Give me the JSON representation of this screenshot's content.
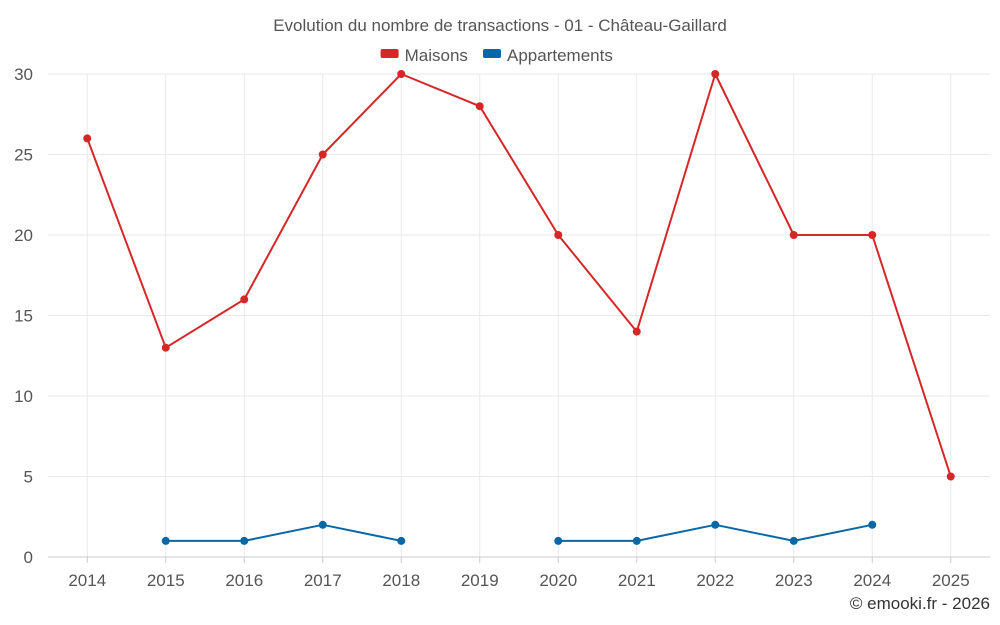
{
  "chart_data": {
    "type": "line",
    "title": "Evolution du nombre de transactions - 01 - Château-Gaillard",
    "xlabel": "",
    "ylabel": "",
    "categories": [
      "2014",
      "2015",
      "2016",
      "2017",
      "2018",
      "2019",
      "2020",
      "2021",
      "2022",
      "2023",
      "2024",
      "2025"
    ],
    "ylim": [
      0,
      30
    ],
    "yticks": [
      "0",
      "5",
      "10",
      "15",
      "20",
      "25",
      "30"
    ],
    "grid": true,
    "legend_position": "top-center",
    "series": [
      {
        "name": "Maisons",
        "color": "#d62728",
        "values": [
          26,
          13,
          16,
          25,
          30,
          28,
          20,
          14,
          30,
          20,
          20,
          5
        ]
      },
      {
        "name": "Appartements",
        "color": "#0868a6",
        "values": [
          null,
          1,
          1,
          2,
          1,
          null,
          1,
          1,
          2,
          1,
          2,
          null
        ]
      }
    ]
  },
  "credit": "© emooki.fr - 2026"
}
